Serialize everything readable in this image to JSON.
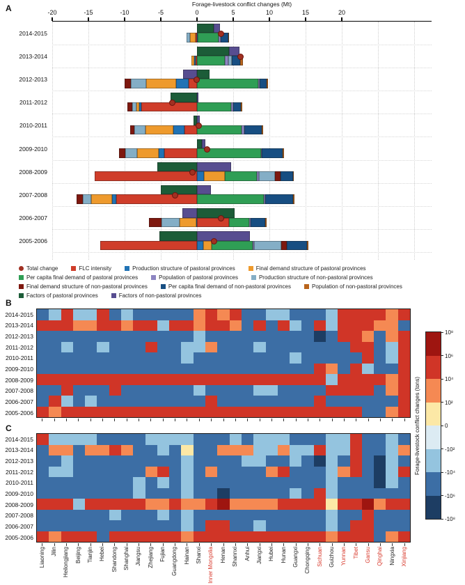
{
  "pastoral_label_color": "#d8392c",
  "chart_data": {
    "palette": {
      "R": "#d03527",
      "O": "#f58953",
      "Y": "#fce8a6",
      "C": "#dcebf3",
      "L": "#94c4df",
      "B": "#3c6ea5",
      "N": "#1d3d63",
      "D": "#9e1510"
    },
    "a": {
      "panel_label": "A",
      "type": "bar",
      "title": "Forage-livestock conflict changes (Mt)",
      "xlabel": "",
      "ylabel": "",
      "xlim": [
        -20,
        20
      ],
      "ticks": [
        -20,
        -15,
        -10,
        -5,
        0,
        5,
        10,
        15,
        20
      ],
      "series_colors": {
        "flc": "#cf3d2a",
        "prod_p": "#2173b5",
        "fd_p": "#ee9a2d",
        "pcfd_p": "#2f9e55",
        "pop_p": "#8d85c2",
        "prod_np": "#84aec6",
        "fd_np": "#7e180f",
        "pcfd_np": "#174e82",
        "pop_np": "#b9641c",
        "factors_p": "#1c5c38",
        "factors_np": "#574d90",
        "total": "#a03022"
      },
      "detail_order": [
        "flc",
        "prod_p",
        "fd_p",
        "pcfd_p",
        "pop_p",
        "prod_np",
        "fd_np",
        "pcfd_np",
        "pop_np"
      ],
      "bars": [
        {
          "year": "2014-2015",
          "factors": [
            2.3,
            0.9
          ],
          "detail": {
            "flc": -0.2,
            "prod_p": 0.1,
            "fd_p": -0.8,
            "pcfd_p": 2.9,
            "pop_p": 0.3,
            "prod_np": -0.4,
            "fd_np": 0,
            "pcfd_np": 1.0,
            "pop_np": 0.15
          },
          "total": 3.2
        },
        {
          "year": "2013-2014",
          "factors": [
            4.4,
            1.5
          ],
          "detail": {
            "flc": -0.2,
            "prod_p": -0.15,
            "fd_p": -0.4,
            "pcfd_p": 3.8,
            "pop_p": 0.5,
            "prod_np": 0.5,
            "fd_np": 0,
            "pcfd_np": 1.2,
            "pop_np": 0.3
          },
          "total": 5.9
        },
        {
          "year": "2012-2013",
          "factors": [
            1.7,
            -1.9
          ],
          "detail": {
            "flc": -1.2,
            "prod_p": -1.7,
            "fd_p": -4.1,
            "pcfd_p": 8.5,
            "pop_p": 0.15,
            "prod_np": -2.1,
            "fd_np": -0.9,
            "pcfd_np": 1.0,
            "pop_np": 0.2
          },
          "total": -0.1
        },
        {
          "year": "2011-2012",
          "factors": [
            -3.7,
            0.2
          ],
          "detail": {
            "flc": -7.7,
            "prod_p": -0.3,
            "fd_p": -0.4,
            "pcfd_p": 4.7,
            "pop_p": 0.3,
            "prod_np": -0.5,
            "fd_np": -0.7,
            "pcfd_np": 1.1,
            "pop_np": 0.15
          },
          "total": -3.5
        },
        {
          "year": "2010-2011",
          "factors": [
            -0.45,
            0.4
          ],
          "detail": {
            "flc": -1.7,
            "prod_p": -1.6,
            "fd_p": -3.8,
            "pcfd_p": 6.2,
            "pop_p": 0.3,
            "prod_np": -1.6,
            "fd_np": -0.5,
            "pcfd_np": 2.4,
            "pop_np": 0.2
          },
          "total": 0.1
        },
        {
          "year": "2009-2010",
          "factors": [
            0.7,
            0.5
          ],
          "detail": {
            "flc": -4.5,
            "prod_p": -0.8,
            "fd_p": -3.0,
            "pcfd_p": 8.8,
            "pop_p": 0.1,
            "prod_np": -1.6,
            "fd_np": -0.9,
            "pcfd_np": 2.9,
            "pop_np": 0.2
          },
          "total": 1.3
        },
        {
          "year": "2008-2009",
          "factors": [
            -5.5,
            4.7
          ],
          "detail": {
            "flc": -14.1,
            "prod_p": 1.0,
            "fd_p": 2.8,
            "pcfd_p": 4.5,
            "pop_p": 0.3,
            "prod_np": 2.2,
            "fd_np": 0.7,
            "pcfd_np": 1.8,
            "pop_np": 0.1
          },
          "total": -0.7
        },
        {
          "year": "2007-2008",
          "factors": [
            -5.0,
            1.9
          ],
          "detail": {
            "flc": -11.2,
            "prod_p": -0.5,
            "fd_p": -2.9,
            "pcfd_p": 9.2,
            "pop_p": 0.2,
            "prod_np": -1.2,
            "fd_np": -0.8,
            "pcfd_np": 3.9,
            "pop_np": 0.2
          },
          "total": -3.1
        },
        {
          "year": "2006-2007",
          "factors": [
            5.2,
            -2.0
          ],
          "detail": {
            "flc": 4.4,
            "prod_p": -0.05,
            "fd_p": -2.4,
            "pcfd_p": 2.8,
            "pop_p": 0.2,
            "prod_np": -2.5,
            "fd_np": -1.7,
            "pcfd_np": 2.0,
            "pop_np": 0.2
          },
          "total": 3.2
        },
        {
          "year": "2005-2006",
          "factors": [
            -5.2,
            7.3
          ],
          "detail": {
            "flc": -13.4,
            "prod_p": 0.9,
            "fd_p": 1.1,
            "pcfd_p": 5.7,
            "pop_p": 0.2,
            "prod_np": 3.7,
            "fd_np": 0.8,
            "pcfd_np": 2.8,
            "pop_np": 0.2
          },
          "total": 2.3
        }
      ]
    },
    "b": {
      "panel_label": "B",
      "type": "heatmap",
      "years": [
        "2014-2015",
        "2013-2014",
        "2012-2013",
        "2011-2012",
        "2010-2011",
        "2009-2010",
        "2008-2009",
        "2007-2008",
        "2006-2007",
        "2005-2006"
      ],
      "matrix": [
        "B L R L L R B L B B B B B O R O R B B L L B B B L R R R R O R",
        "R R R O O R R O R R L R R O R R O B R B R L B R L R R R O O B",
        "B B B B B B B B B B B B B L B B B B B B B B B N B R R O B O R",
        "B B L B B L B B B R B B L L O B B B L B B B B B B B R R B L R",
        "B B B B B B B B B B B B L B B B B B B B B L B B B B B R B L R",
        "B B B B B B B B B B B B B B B B B B B B B B B R O B R L B B R",
        "R R R R R R R R R R R R R R R R R R R R R R R R L R R R R O R",
        "B B R B B B R B B B B B B L B B B B L L B B B B R R R R B O R",
        "B R L B L B B B B B B B B B R B B B B B B B B R B B B B B B R",
        "R O R R R R R R R R R R R R R R R R R R R R R R R R R B B O R"
      ]
    },
    "c": {
      "panel_label": "C",
      "type": "heatmap",
      "years": [
        "2014-2015",
        "2013-2014",
        "2012-2013",
        "2011-2012",
        "2010-2011",
        "2009-2010",
        "2008-2009",
        "2007-2008",
        "2006-2007",
        "2005-2006"
      ],
      "matrix": [
        "R L L L L B B B B L L L L B B B L B L L L B B B L L R B B L B",
        "B O O B O O R O B B L B Y B B O O O L L O L L R L L R B B L O",
        "B B L B B B B B B B B B L B B B B L L B B L B N L B R B N L B",
        "B L L B B B B B B O R B L B O B B B B O R B B B L O R B N L R",
        "B B B B B B B B L B L B L B B B B B B B B B B B L B B B N L B",
        "B B B B B B B B L B B B L B B N B B B B B L B R L B B B B B B",
        "R R R L R R R R R O O R O O R D O O O O R R R R Y R R D O R R",
        "B B B B B B L B B B L B L B B B B B B B B B B B L B B R B B B",
        "B B B B B B B B B B B B L B R R B B L B B B B B L B R R B B B",
        "R O R R R B R R R R R R O R R R R R R R R R R R O R R R B O R"
      ],
      "provinces": [
        {
          "name": "Liaoning",
          "pastoral": false
        },
        {
          "name": "Jilin",
          "pastoral": false
        },
        {
          "name": "Heilongjiang",
          "pastoral": false
        },
        {
          "name": "Beijing",
          "pastoral": false
        },
        {
          "name": "Tianjin",
          "pastoral": false
        },
        {
          "name": "Hebei",
          "pastoral": false
        },
        {
          "name": "Shandong",
          "pastoral": false
        },
        {
          "name": "Shanghai",
          "pastoral": false
        },
        {
          "name": "Jiangsu",
          "pastoral": false
        },
        {
          "name": "Zhejiang",
          "pastoral": false
        },
        {
          "name": "Fujian",
          "pastoral": false
        },
        {
          "name": "Guangdong",
          "pastoral": false
        },
        {
          "name": "Hainan",
          "pastoral": false
        },
        {
          "name": "Shanxi",
          "pastoral": false
        },
        {
          "name": "Inner Mongolia",
          "pastoral": true
        },
        {
          "name": "Henan",
          "pastoral": false
        },
        {
          "name": "Shannxi",
          "pastoral": false
        },
        {
          "name": "Anhui",
          "pastoral": false
        },
        {
          "name": "Jiangxi",
          "pastoral": false
        },
        {
          "name": "Hubei",
          "pastoral": false
        },
        {
          "name": "Hunan",
          "pastoral": false
        },
        {
          "name": "Guangxi",
          "pastoral": false
        },
        {
          "name": "Chongqing",
          "pastoral": false
        },
        {
          "name": "Sichuan",
          "pastoral": true
        },
        {
          "name": "Guizhou",
          "pastoral": false
        },
        {
          "name": "Yunnan",
          "pastoral": true
        },
        {
          "name": "Tibet",
          "pastoral": true
        },
        {
          "name": "Gansu",
          "pastoral": true
        },
        {
          "name": "Qinghai",
          "pastoral": true
        },
        {
          "name": "Ningxia",
          "pastoral": false
        },
        {
          "name": "Xinjiang",
          "pastoral": true
        }
      ]
    },
    "colorbar": {
      "title": "Forage-livestock conflict changes (tons)",
      "labels": [
        "10⁸",
        "10⁶",
        "10⁴",
        "10²",
        "0",
        "-10²",
        "-10⁴",
        "-10⁶",
        "-10⁸"
      ],
      "colors": [
        "#9e1510",
        "#d03527",
        "#f58953",
        "#fce8a6",
        "#dcebf3",
        "#94c4df",
        "#3c6ea5",
        "#1d3d63"
      ]
    }
  },
  "legend": {
    "rows": [
      [
        {
          "label": "Total change",
          "color": "#a03022",
          "shape": "dot"
        },
        {
          "label": "FLC intensity",
          "color": "#cf3d2a",
          "shape": "square"
        },
        {
          "label": "Production structure of pastoral provinces",
          "color": "#2173b5",
          "shape": "square"
        },
        {
          "label": "Final demand structure of pastoral provinces",
          "color": "#ee9a2d",
          "shape": "square"
        }
      ],
      [
        {
          "label": "Per capita final demand of pastoral provinces",
          "color": "#2f9e55",
          "shape": "square"
        },
        {
          "label": "Population of pastoral provinces",
          "color": "#8d85c2",
          "shape": "square"
        },
        {
          "label": "Production structure of non-pastoral provinces",
          "color": "#84aec6",
          "shape": "square"
        }
      ],
      [
        {
          "label": "Final demand structure of non-pastoral provinces",
          "color": "#7e180f",
          "shape": "square"
        },
        {
          "label": "Per capita final demand of non-pastoral provinces",
          "color": "#174e82",
          "shape": "square"
        },
        {
          "label": "Population of non-pastoral provinces",
          "color": "#b9641c",
          "shape": "square"
        }
      ],
      [
        {
          "label": "Factors of pastoral provinces",
          "color": "#1c5c38",
          "shape": "square"
        },
        {
          "label": "Factors of non-pastoral provinces",
          "color": "#574d90",
          "shape": "square"
        }
      ]
    ]
  }
}
